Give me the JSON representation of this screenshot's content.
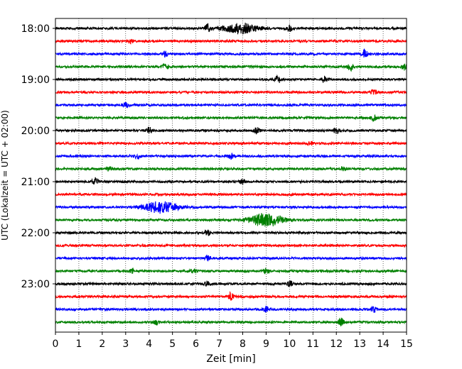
{
  "chart_data": {
    "type": "line",
    "title": "",
    "xlabel": "Zeit  [min]",
    "ylabel": "UTC (Lokalzeit = UTC + 02:00)",
    "xlim": [
      0,
      15
    ],
    "x_ticks": [
      "0",
      "1",
      "2",
      "3",
      "4",
      "5",
      "6",
      "7",
      "8",
      "9",
      "10",
      "11",
      "12",
      "13",
      "14",
      "15"
    ],
    "y_ticks": [
      "18:00",
      "19:00",
      "20:00",
      "21:00",
      "22:00",
      "23:00"
    ],
    "grid": "vertical dotted",
    "trace_interval_minutes": 15,
    "traces_per_hour": 4,
    "colors": [
      "#000000",
      "#ff0000",
      "#0000ff",
      "#008000"
    ],
    "series": [
      {
        "start": "18:00",
        "color": "#000000",
        "events": [
          {
            "t": 6.5,
            "amp": 1.0
          },
          {
            "t": 7.9,
            "amp": 1.2
          },
          {
            "t": 10.0,
            "amp": 0.7
          }
        ]
      },
      {
        "start": "18:15",
        "color": "#ff0000",
        "events": [
          {
            "t": 3.2,
            "amp": 0.5
          }
        ]
      },
      {
        "start": "18:30",
        "color": "#0000ff",
        "events": [
          {
            "t": 4.7,
            "amp": 0.6
          },
          {
            "t": 13.2,
            "amp": 1.0
          }
        ]
      },
      {
        "start": "18:45",
        "color": "#008000",
        "events": [
          {
            "t": 4.7,
            "amp": 0.7
          },
          {
            "t": 12.6,
            "amp": 0.9
          },
          {
            "t": 14.9,
            "amp": 0.7
          }
        ]
      },
      {
        "start": "19:00",
        "color": "#000000",
        "events": [
          {
            "t": 9.5,
            "amp": 0.8
          },
          {
            "t": 11.5,
            "amp": 0.8
          }
        ]
      },
      {
        "start": "19:15",
        "color": "#ff0000",
        "events": [
          {
            "t": 13.6,
            "amp": 0.7
          }
        ]
      },
      {
        "start": "19:30",
        "color": "#0000ff",
        "events": [
          {
            "t": 3.0,
            "amp": 0.5
          }
        ]
      },
      {
        "start": "19:45",
        "color": "#008000",
        "events": [
          {
            "t": 13.6,
            "amp": 0.6
          }
        ]
      },
      {
        "start": "20:00",
        "color": "#000000",
        "events": [
          {
            "t": 4.0,
            "amp": 0.7
          },
          {
            "t": 8.6,
            "amp": 0.7
          },
          {
            "t": 12.0,
            "amp": 0.7
          }
        ]
      },
      {
        "start": "20:15",
        "color": "#ff0000",
        "events": [
          {
            "t": 10.9,
            "amp": 0.5
          }
        ]
      },
      {
        "start": "20:30",
        "color": "#0000ff",
        "events": [
          {
            "t": 3.5,
            "amp": 0.7
          },
          {
            "t": 7.5,
            "amp": 0.6
          }
        ]
      },
      {
        "start": "20:45",
        "color": "#008000",
        "events": [
          {
            "t": 2.3,
            "amp": 0.5
          },
          {
            "t": 12.3,
            "amp": 0.6
          }
        ]
      },
      {
        "start": "21:00",
        "color": "#000000",
        "events": [
          {
            "t": 1.7,
            "amp": 1.0
          },
          {
            "t": 8.0,
            "amp": 0.5
          }
        ]
      },
      {
        "start": "21:15",
        "color": "#ff0000",
        "events": []
      },
      {
        "start": "21:30",
        "color": "#0000ff",
        "events": [
          {
            "t": 4.5,
            "amp": 1.3
          }
        ]
      },
      {
        "start": "21:45",
        "color": "#008000",
        "events": [
          {
            "t": 9.0,
            "amp": 1.5
          }
        ]
      },
      {
        "start": "22:00",
        "color": "#000000",
        "events": [
          {
            "t": 6.5,
            "amp": 0.6
          }
        ]
      },
      {
        "start": "22:15",
        "color": "#ff0000",
        "events": []
      },
      {
        "start": "22:30",
        "color": "#0000ff",
        "events": [
          {
            "t": 6.5,
            "amp": 0.5
          }
        ]
      },
      {
        "start": "22:45",
        "color": "#008000",
        "events": [
          {
            "t": 3.3,
            "amp": 0.6
          },
          {
            "t": 5.9,
            "amp": 0.5
          },
          {
            "t": 9.0,
            "amp": 0.6
          }
        ]
      },
      {
        "start": "23:00",
        "color": "#000000",
        "events": [
          {
            "t": 6.5,
            "amp": 0.5
          },
          {
            "t": 10.0,
            "amp": 0.6
          }
        ]
      },
      {
        "start": "23:15",
        "color": "#ff0000",
        "events": [
          {
            "t": 7.5,
            "amp": 0.9
          }
        ]
      },
      {
        "start": "23:30",
        "color": "#0000ff",
        "events": [
          {
            "t": 9.0,
            "amp": 0.6
          },
          {
            "t": 13.6,
            "amp": 0.6
          }
        ]
      },
      {
        "start": "23:45",
        "color": "#008000",
        "events": [
          {
            "t": 4.3,
            "amp": 0.6
          },
          {
            "t": 12.2,
            "amp": 0.9
          }
        ]
      }
    ]
  }
}
